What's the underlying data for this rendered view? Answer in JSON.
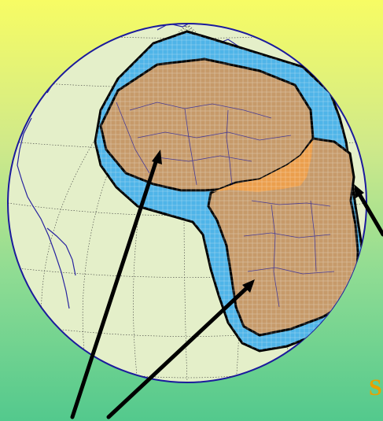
{
  "colors": {
    "ocean": "#e4efc9",
    "globe_outline": "#1b1a9c",
    "coast": "#27239f",
    "graticule": "#3a3a3a",
    "outer_beam": "#4fb4e8",
    "inner_beam": "#c69a6a",
    "overlap": "#eb9f4d",
    "arrow": "#000000",
    "label": "#e8a000"
  },
  "map": {
    "beams": [
      "outer-coverage",
      "north-beam",
      "south-beam",
      "overlap-zone"
    ],
    "arrows": 3
  },
  "corner_label": "S"
}
